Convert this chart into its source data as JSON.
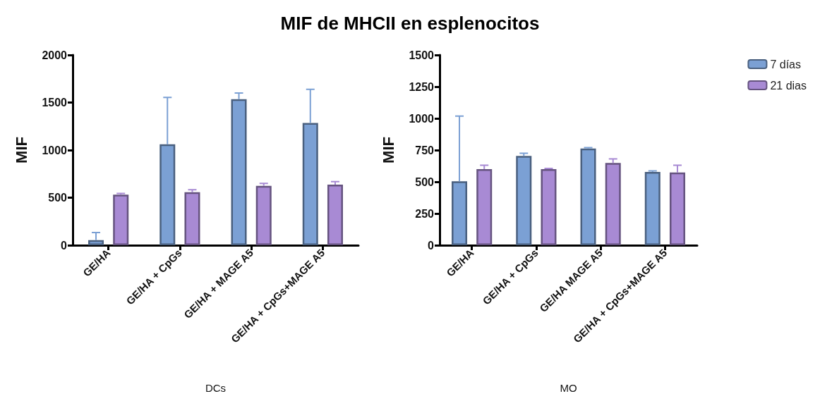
{
  "chart_data": [
    {
      "type": "bar",
      "title": "MIF de MHCII en esplenocitos",
      "xlabel": "DCs",
      "ylabel": "MIF",
      "categories": [
        "GE/HA",
        "GE/HA + CpGs",
        "GE/HA + MAGE A5",
        "GE/HA + CpGs+MAGE A5"
      ],
      "ylim": [
        0,
        2000
      ],
      "yticks": [
        0,
        500,
        1000,
        1500,
        2000
      ],
      "grid": false,
      "legend": false,
      "series": [
        {
          "color": "#7ba0d4",
          "values": [
            53,
            1062,
            1535,
            1285
          ],
          "errors": [
            [
              53,
              133
            ],
            [
              1062,
              1554
            ],
            [
              1535,
              1600
            ],
            [
              1285,
              1638
            ]
          ]
        },
        {
          "color": "#a88ad4",
          "values": [
            531,
            558,
            624,
            637
          ],
          "errors": [
            [
              531,
              545
            ],
            [
              558,
              584
            ],
            [
              624,
              650
            ],
            [
              637,
              669
            ]
          ]
        }
      ]
    },
    {
      "type": "bar",
      "xlabel": "MO",
      "ylabel": "MIF",
      "categories": [
        "GE/HA",
        "GE/HA + CpGs",
        "GE/HA MAGE A5",
        "GE/HA + CpGs+MAGE A5"
      ],
      "ylim": [
        0,
        1500
      ],
      "yticks": [
        0,
        250,
        500,
        750,
        1000,
        1250,
        1500
      ],
      "grid": false,
      "legend": "top right",
      "series": [
        {
          "name": "7 días",
          "color": "#7ba0d4",
          "values": [
            504,
            704,
            763,
            578
          ],
          "errors": [
            [
              504,
              1018
            ],
            [
              704,
              725
            ],
            [
              763,
              770
            ],
            [
              578,
              586
            ]
          ]
        },
        {
          "name": "21 dias",
          "color": "#a88ad4",
          "values": [
            600,
            600,
            649,
            573
          ],
          "errors": [
            [
              600,
              630
            ],
            [
              600,
              606
            ],
            [
              649,
              680
            ],
            [
              573,
              630
            ]
          ]
        }
      ]
    }
  ]
}
